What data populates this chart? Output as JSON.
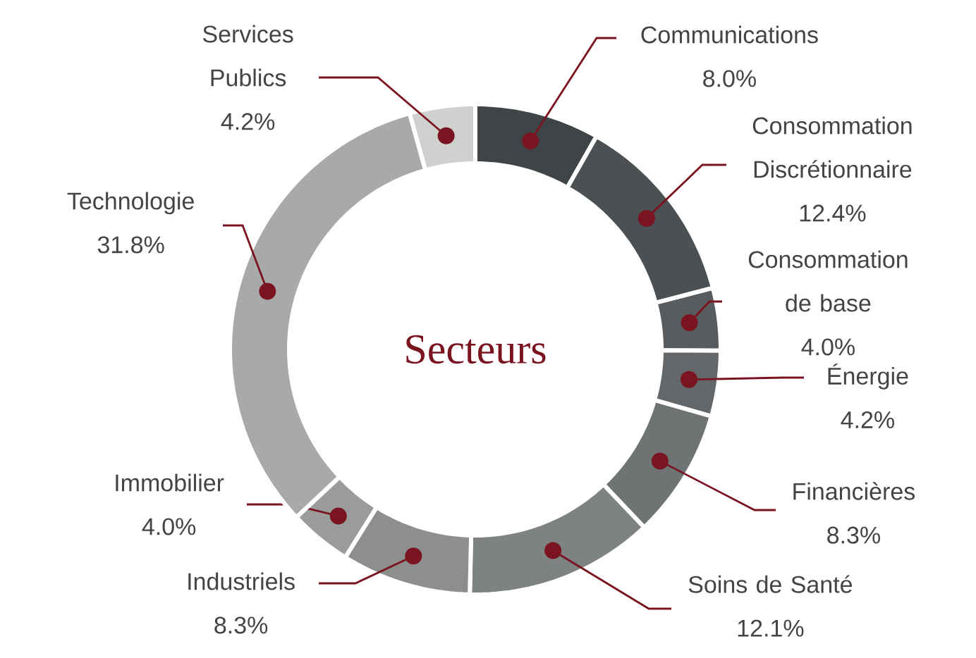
{
  "chart_data": {
    "type": "donut",
    "title": "Secteurs",
    "categories": [
      "Communications",
      "Consommation Discrétionnaire",
      "Consommation de base",
      "Énergie",
      "Financières",
      "Soins de Santé",
      "Industriels",
      "Immobilier",
      "Technologie",
      "Services Publics"
    ],
    "values": [
      8.0,
      12.4,
      4.0,
      4.2,
      8.3,
      12.1,
      8.3,
      4.0,
      31.8,
      4.2
    ],
    "value_labels": [
      "8.0%",
      "12.4%",
      "4.0%",
      "4.2%",
      "8.3%",
      "12.1%",
      "8.3%",
      "4.0%",
      "31.8%",
      "4.2%"
    ],
    "colors": [
      "#3f4446",
      "#4b5052",
      "#585c5e",
      "#636769",
      "#6f7374",
      "#7e8282",
      "#8d8f8f",
      "#9a9c9c",
      "#a8aaaa",
      "#ced1ce"
    ]
  }
}
